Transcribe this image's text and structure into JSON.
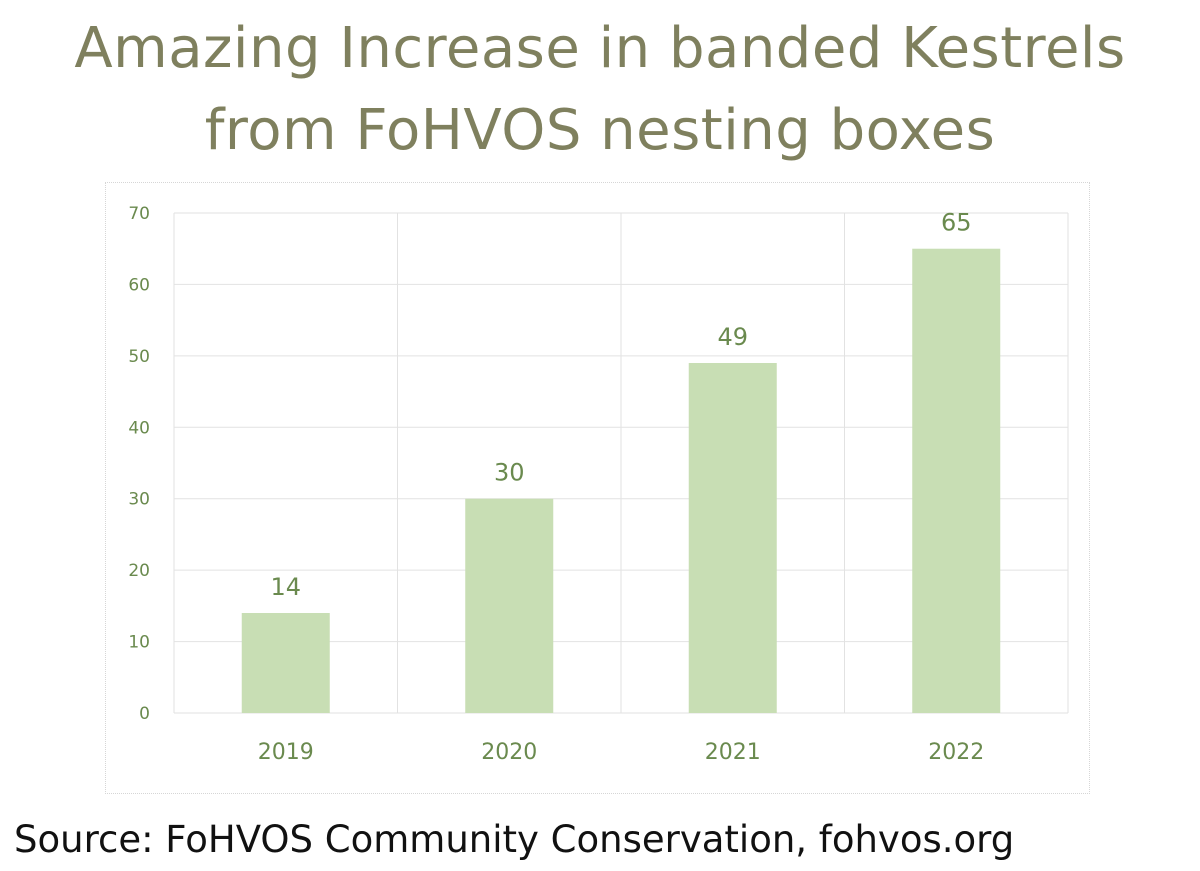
{
  "colors": {
    "title": "#7f805e",
    "bar": "#c8deb4",
    "label": "#6a8a4e",
    "grid": "#e2e2e2",
    "source": "#111111"
  },
  "chart_data": {
    "type": "bar",
    "title": "Amazing Increase in banded Kestrels from FoHVOS nesting boxes",
    "title_lines": [
      "Amazing Increase in banded Kestrels",
      "from FoHVOS nesting boxes"
    ],
    "categories": [
      "2019",
      "2020",
      "2021",
      "2022"
    ],
    "values": [
      14,
      30,
      49,
      65
    ],
    "data_labels": [
      "14",
      "30",
      "49",
      "65"
    ],
    "xlabel": "",
    "ylabel": "",
    "ylim": [
      0,
      70
    ],
    "yticks": [
      "0",
      "10",
      "20",
      "30",
      "40",
      "50",
      "60",
      "70"
    ],
    "grid": true,
    "legend": "none"
  },
  "source_text": "Source: FoHVOS Community Conservation, fohvos.org"
}
